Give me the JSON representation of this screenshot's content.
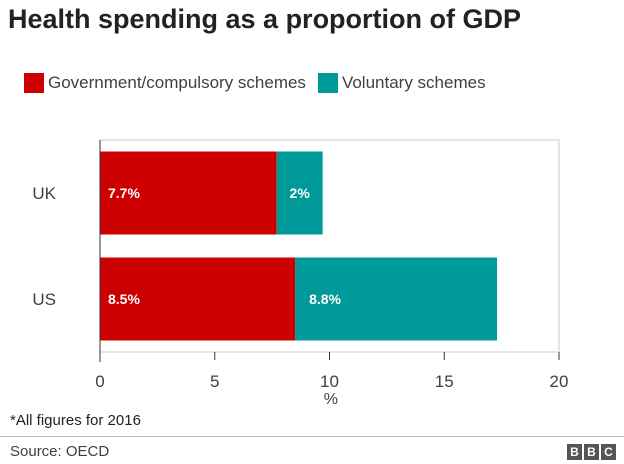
{
  "title": "Health spending as a proportion of GDP",
  "colors": {
    "government": "#cc0000",
    "voluntary": "#009999"
  },
  "chart_data": {
    "type": "bar",
    "orientation": "horizontal",
    "stacked": true,
    "title": "Health spending as a proportion of GDP",
    "categories": [
      "UK",
      "US"
    ],
    "series": [
      {
        "name": "Government/compulsory schemes",
        "values": [
          7.7,
          8.5
        ],
        "labels": [
          "7.7%",
          "8.5%"
        ]
      },
      {
        "name": "Voluntary schemes",
        "values": [
          2,
          8.8
        ],
        "labels": [
          "2%",
          "8.8%"
        ]
      }
    ],
    "xlabel": "%",
    "ylabel": "",
    "xlim": [
      0,
      20
    ],
    "xticks": [
      0,
      5,
      10,
      15,
      20
    ],
    "legend": "top-left",
    "grid": false
  },
  "footnote": "*All figures for 2016",
  "source": "Source: OECD",
  "logo": [
    "B",
    "B",
    "C"
  ]
}
